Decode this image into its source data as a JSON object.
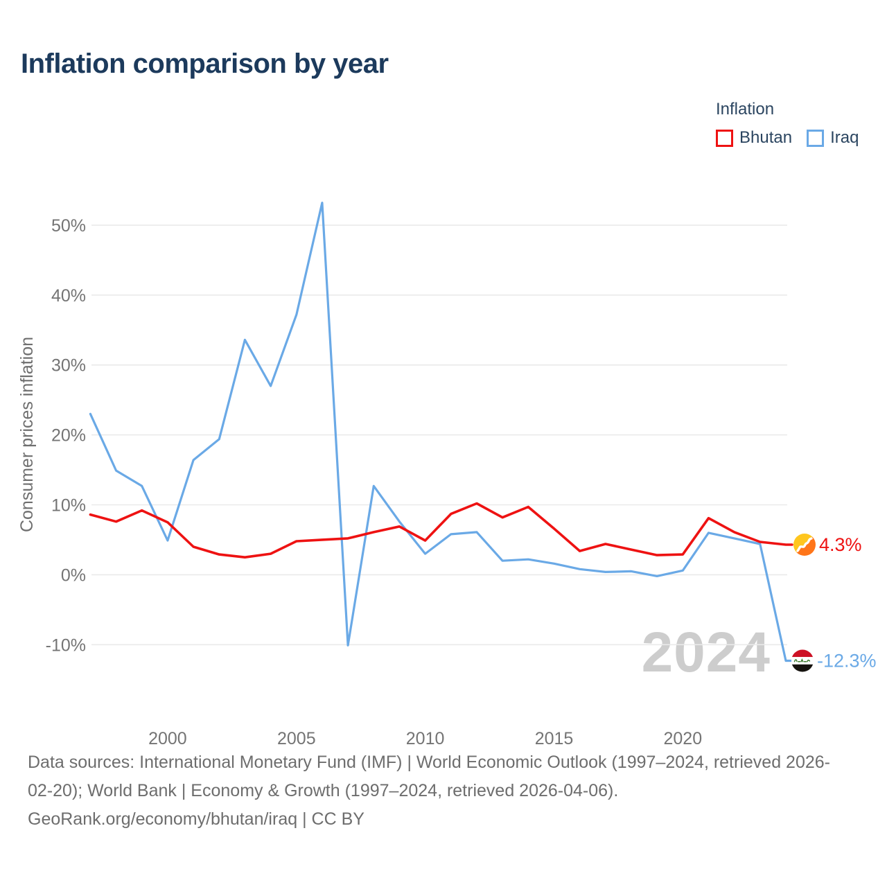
{
  "title": "Inflation comparison by year",
  "legend": {
    "title": "Inflation",
    "items": [
      {
        "label": "Bhutan",
        "color": "#ee1212"
      },
      {
        "label": "Iraq",
        "color": "#6aa9e6"
      }
    ]
  },
  "watermark": "2024",
  "end_labels": {
    "bhutan": "4.3%",
    "iraq": "-12.3%"
  },
  "footer": {
    "lines": [
      "Data sources: International Monetary Fund (IMF) | World Economic Outlook (1997–2024, retrieved 2026-",
      "02-20); World Bank | Economy & Growth (1997–2024, retrieved 2026-04-06).",
      "GeoRank.org/economy/bhutan/iraq | CC BY"
    ]
  },
  "chart_data": {
    "type": "line",
    "title": "Inflation comparison by year",
    "xlabel": "",
    "ylabel": "Consumer prices inflation",
    "x": [
      1997,
      1998,
      1999,
      2000,
      2001,
      2002,
      2003,
      2004,
      2005,
      2006,
      2007,
      2008,
      2009,
      2010,
      2011,
      2012,
      2013,
      2014,
      2015,
      2016,
      2017,
      2018,
      2019,
      2020,
      2021,
      2022,
      2023,
      2024
    ],
    "series": [
      {
        "name": "Bhutan",
        "color": "#ee1212",
        "values": [
          8.6,
          7.6,
          9.2,
          7.5,
          4.0,
          2.9,
          2.5,
          3.0,
          4.8,
          5.0,
          5.2,
          6.1,
          6.9,
          4.9,
          8.7,
          10.2,
          8.2,
          9.7,
          6.6,
          3.4,
          4.4,
          3.6,
          2.8,
          2.9,
          8.1,
          6.1,
          4.7,
          4.3
        ]
      },
      {
        "name": "Iraq",
        "color": "#6aa9e6",
        "values": [
          23.0,
          14.9,
          12.7,
          4.9,
          16.4,
          19.4,
          33.6,
          27.0,
          37.2,
          53.2,
          -10.1,
          12.7,
          7.6,
          3.0,
          5.8,
          6.1,
          2.0,
          2.2,
          1.6,
          0.8,
          0.4,
          0.5,
          -0.2,
          0.6,
          6.0,
          5.2,
          4.4,
          -12.3
        ]
      }
    ],
    "ylim": [
      -15,
      55
    ],
    "yticks": [
      -10,
      0,
      10,
      20,
      30,
      40,
      50
    ],
    "ytick_labels": [
      "-10%",
      "0%",
      "10%",
      "20%",
      "30%",
      "40%",
      "50%"
    ],
    "xticks": [
      2000,
      2005,
      2010,
      2015,
      2020
    ],
    "grid": "horizontal",
    "legend_position": "top-right"
  }
}
